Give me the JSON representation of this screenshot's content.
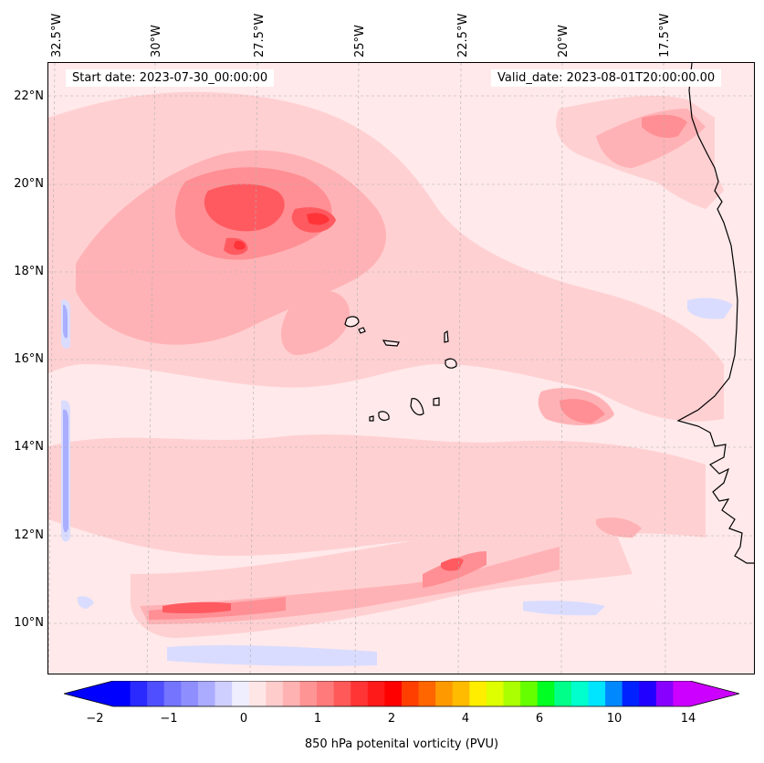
{
  "map": {
    "start_date": "Start date: 2023-07-30_00:00:00",
    "valid_date": "Valid_date: 2023-08-01T20:00:00.00",
    "lon_labels": [
      "32.5°W",
      "30°W",
      "27.5°W",
      "25°W",
      "22.5°W",
      "20°W",
      "17.5°W"
    ],
    "lat_labels": [
      "22°N",
      "20°N",
      "18°N",
      "16°N",
      "14°N",
      "12°N",
      "10°N"
    ],
    "colors": {
      "background": "#ffe9ea",
      "light_pink": "#ffd0d2",
      "pink": "#ffb2b5",
      "salmon": "#ff8f94",
      "coral": "#ff6b71",
      "red": "#ff3438",
      "light_blue": "#d9dcff",
      "blue": "#a9aeff",
      "coastline": "#000000"
    }
  },
  "colorbar": {
    "label": "850 hPa potenital vorticity (PVU)",
    "tick_labels": [
      "−2",
      "−1",
      "0",
      "1",
      "2",
      "4",
      "6",
      "10",
      "14"
    ],
    "colors": [
      "#0000ff",
      "#2a2aff",
      "#4f4fff",
      "#7474ff",
      "#8e8eff",
      "#ababff",
      "#cfcfff",
      "#eeeeff",
      "#ffe6e6",
      "#ffcccc",
      "#ffb2b2",
      "#ff9494",
      "#ff7a7a",
      "#ff5959",
      "#ff3535",
      "#ff1a1a",
      "#ff0000",
      "#ff3f00",
      "#ff6600",
      "#ff9900",
      "#ffbb00",
      "#ffee00",
      "#ddff00",
      "#aaff00",
      "#66ff00",
      "#00ff22",
      "#00ff88",
      "#00ffcc",
      "#00e5ff",
      "#0088ff",
      "#0022ff",
      "#2200ff",
      "#8800ff",
      "#cc00ff"
    ],
    "extend_min_color": "#0000ff",
    "extend_max_color": "#cc00ff"
  }
}
